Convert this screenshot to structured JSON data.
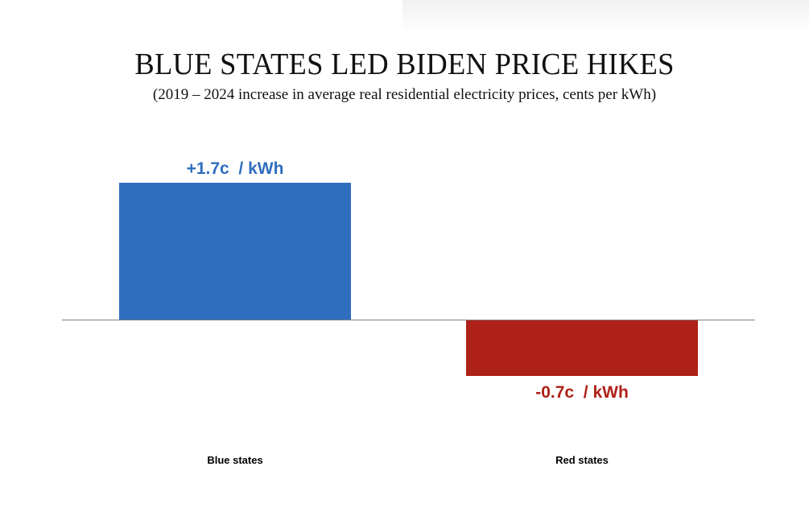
{
  "chart_data": {
    "type": "bar",
    "title": "BLUE STATES LED BIDEN PRICE HIKES",
    "subtitle": "(2019 – 2024 increase in average real residential electricity prices, cents per kWh)",
    "xlabel": "",
    "ylabel": "",
    "categories": [
      "Blue states",
      "Red states"
    ],
    "values": [
      1.7,
      -0.7
    ],
    "data_labels": [
      "+1.7c  / kWh",
      "-0.7c  / kWh"
    ],
    "colors": [
      "#2f6ebe",
      "#ae2118"
    ],
    "ylim": [
      -1.7,
      1.7
    ],
    "grid": false,
    "legend": "none",
    "baseline_color": "#808080"
  }
}
